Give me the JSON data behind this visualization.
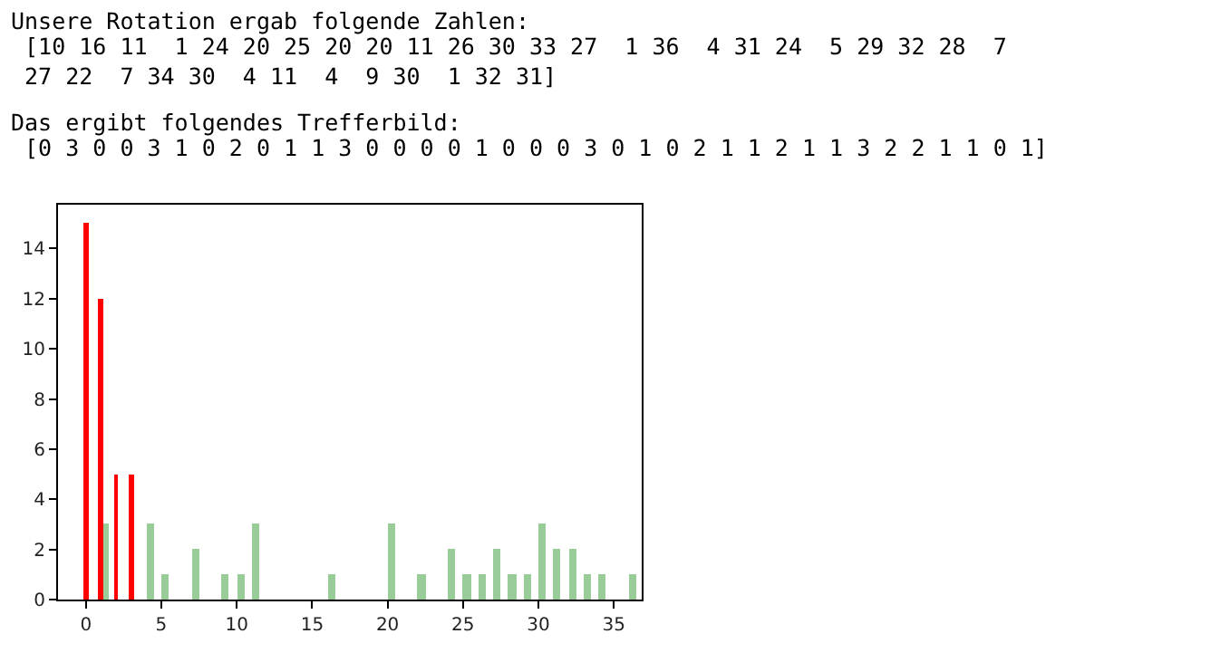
{
  "chart_data": {
    "type": "bar",
    "annotations": [
      "Unsere Rotation ergab folgende Zahlen:",
      " [10 16 11  1 24 20 25 20 20 11 26 30 33 27  1 36  4 31 24  5 29 32 28  7\n 27 22  7 34 30  4 11  4  9 30  1 32 31]",
      "Das ergibt folgendes Trefferbild:",
      " [0 3 0 0 3 1 0 2 0 1 1 3 0 0 0 0 1 0 0 0 3 0 1 0 2 1 1 2 1 1 3 2 2 1 1 0 1]"
    ],
    "series": [
      {
        "color": "#99cc99",
        "x": [
          0,
          1,
          2,
          3,
          4,
          5,
          6,
          7,
          8,
          9,
          10,
          11,
          12,
          13,
          14,
          15,
          16,
          17,
          18,
          19,
          20,
          21,
          22,
          23,
          24,
          25,
          26,
          27,
          28,
          29,
          30,
          31,
          32,
          33,
          34,
          35,
          36
        ],
        "values": [
          0,
          3,
          0,
          0,
          3,
          1,
          0,
          2,
          0,
          1,
          1,
          3,
          0,
          0,
          0,
          0,
          1,
          0,
          0,
          0,
          3,
          0,
          1,
          0,
          2,
          1,
          1,
          2,
          1,
          1,
          3,
          2,
          2,
          1,
          1,
          0,
          1
        ]
      },
      {
        "color": "#ff0000",
        "x": [
          0,
          1,
          2,
          3
        ],
        "values": [
          15,
          12,
          5,
          5
        ]
      }
    ],
    "xlim": [
      -1.85,
      36.85
    ],
    "xticks": [
      0,
      5,
      10,
      15,
      20,
      25,
      30,
      35
    ],
    "ylim": [
      0,
      15.75
    ],
    "yticks": [
      0,
      2,
      4,
      6,
      8,
      10,
      12,
      14
    ]
  }
}
